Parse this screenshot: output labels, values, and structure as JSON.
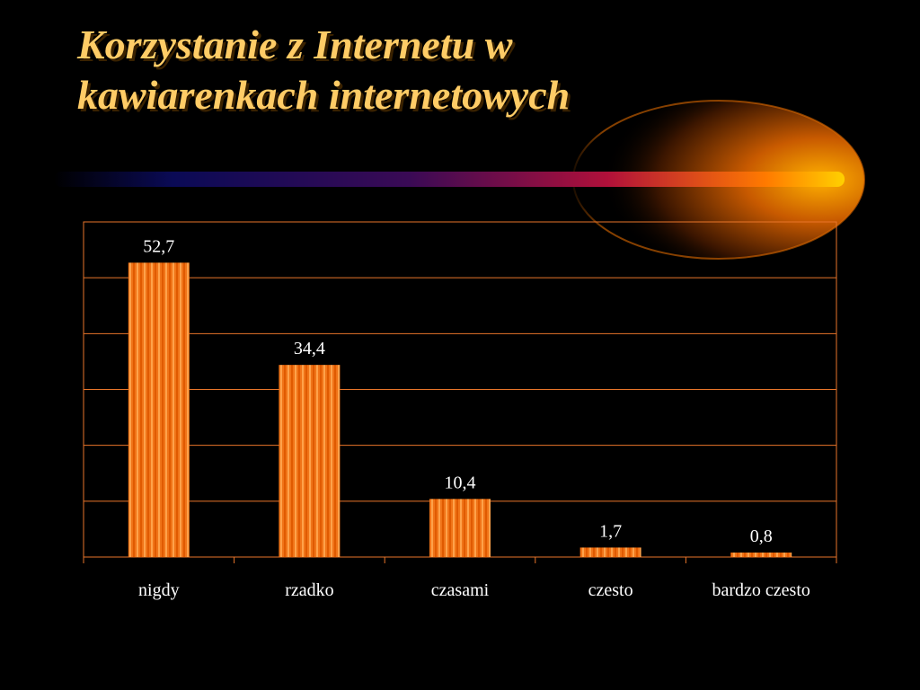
{
  "slide": {
    "title_line1": "Korzystanie z Internetu w",
    "title_line2": "kawiarenkach internetowych"
  },
  "colors": {
    "background": "#000000",
    "title": "#FFCC66",
    "bar_dark": "#E05A00",
    "bar_light": "#FF9A3C",
    "grid": "#E8752A",
    "text": "#FFFFFF"
  },
  "chart_data": {
    "type": "bar",
    "title": "",
    "xlabel": "",
    "ylabel": "",
    "categories": [
      "nigdy",
      "rzadko",
      "czasami",
      "czesto",
      "bardzo czesto"
    ],
    "values": [
      52.7,
      34.4,
      10.4,
      1.7,
      0.8
    ],
    "value_labels": [
      "52,7",
      "34,4",
      "10,4",
      "1,7",
      "0,8"
    ],
    "ylim": [
      0,
      60
    ],
    "grid": true,
    "legend": "none"
  }
}
